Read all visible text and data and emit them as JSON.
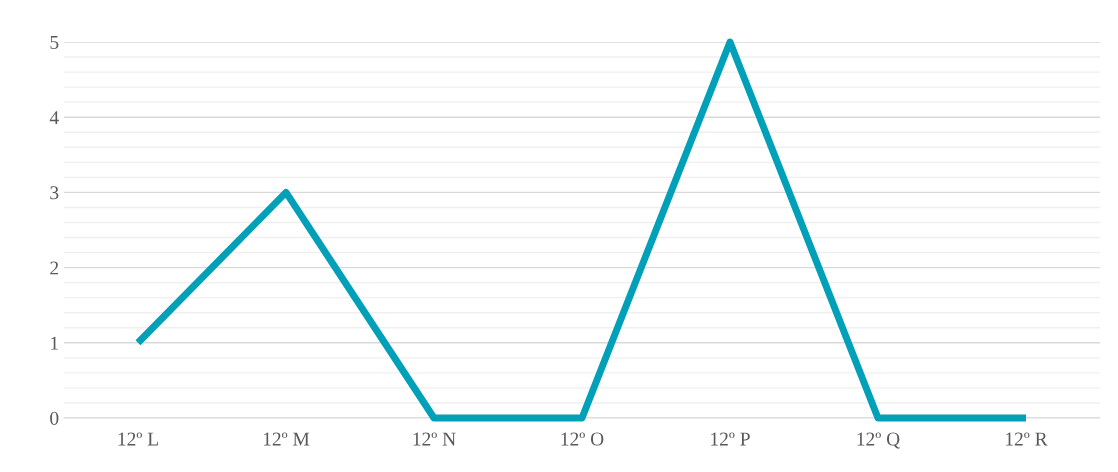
{
  "chart_data": {
    "type": "line",
    "categories": [
      "12º L",
      "12º M",
      "12º N",
      "12º O",
      "12º P",
      "12º Q",
      "12º R"
    ],
    "series": [
      {
        "color": "#00a0b8",
        "values": [
          1,
          3,
          0,
          0,
          5,
          0,
          0
        ]
      }
    ],
    "ylim": [
      0,
      5
    ],
    "yticks": [
      0,
      {
        "value": 0.2,
        "label": null
      },
      {
        "value": 0.4,
        "label": null
      },
      {
        "value": 0.6,
        "label": null
      },
      {
        "value": 0.8,
        "label": null
      },
      1,
      {
        "value": 1.2,
        "label": null
      },
      {
        "value": 1.4,
        "label": null
      },
      {
        "value": 1.6,
        "label": null
      },
      {
        "value": 1.8,
        "label": null
      },
      2,
      {
        "value": 2.2,
        "label": null
      },
      {
        "value": 2.4,
        "label": null
      },
      {
        "value": 2.6,
        "label": null
      },
      {
        "value": 2.8,
        "label": null
      },
      3,
      {
        "value": 3.2,
        "label": null
      },
      {
        "value": 3.4,
        "label": null
      },
      {
        "value": 3.6,
        "label": null
      },
      {
        "value": 3.8,
        "label": null
      },
      4,
      {
        "value": 4.2,
        "label": null
      },
      {
        "value": 4.4,
        "label": null
      },
      {
        "value": 4.6,
        "label": null
      },
      {
        "value": 4.8,
        "label": null
      },
      5
    ],
    "grid": "y",
    "marker": "none",
    "line_style": "solid"
  }
}
